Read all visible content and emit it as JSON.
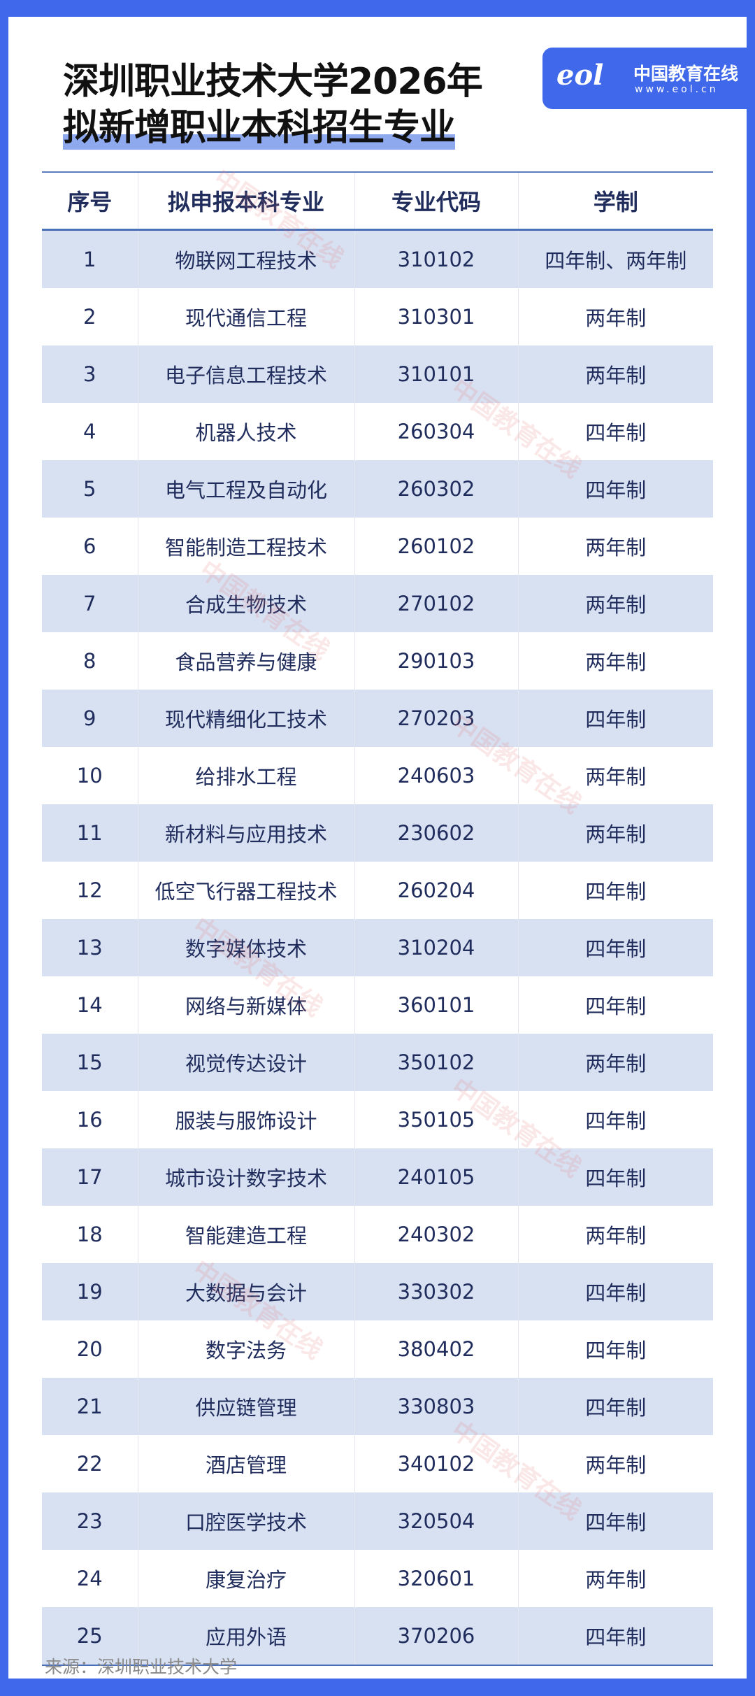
{
  "title": {
    "line1": "深圳职业技术大学2026年",
    "line2": "拟新增职业本科招生专业"
  },
  "logo": {
    "mark": "eol",
    "name": "中国教育在线",
    "url": "www.eol.cn"
  },
  "watermark": "中国教育在线",
  "table": {
    "headers": [
      "序号",
      "拟申报本科专业",
      "专业代码",
      "学制"
    ],
    "rows": [
      [
        "1",
        "物联网工程技术",
        "310102",
        "四年制、两年制"
      ],
      [
        "2",
        "现代通信工程",
        "310301",
        "两年制"
      ],
      [
        "3",
        "电子信息工程技术",
        "310101",
        "两年制"
      ],
      [
        "4",
        "机器人技术",
        "260304",
        "四年制"
      ],
      [
        "5",
        "电气工程及自动化",
        "260302",
        "四年制"
      ],
      [
        "6",
        "智能制造工程技术",
        "260102",
        "两年制"
      ],
      [
        "7",
        "合成生物技术",
        "270102",
        "两年制"
      ],
      [
        "8",
        "食品营养与健康",
        "290103",
        "两年制"
      ],
      [
        "9",
        "现代精细化工技术",
        "270203",
        "四年制"
      ],
      [
        "10",
        "给排水工程",
        "240603",
        "两年制"
      ],
      [
        "11",
        "新材料与应用技术",
        "230602",
        "两年制"
      ],
      [
        "12",
        "低空飞行器工程技术",
        "260204",
        "四年制"
      ],
      [
        "13",
        "数字媒体技术",
        "310204",
        "四年制"
      ],
      [
        "14",
        "网络与新媒体",
        "360101",
        "四年制"
      ],
      [
        "15",
        "视觉传达设计",
        "350102",
        "两年制"
      ],
      [
        "16",
        "服装与服饰设计",
        "350105",
        "四年制"
      ],
      [
        "17",
        "城市设计数字技术",
        "240105",
        "四年制"
      ],
      [
        "18",
        "智能建造工程",
        "240302",
        "两年制"
      ],
      [
        "19",
        "大数据与会计",
        "330302",
        "四年制"
      ],
      [
        "20",
        "数字法务",
        "380402",
        "四年制"
      ],
      [
        "21",
        "供应链管理",
        "330803",
        "四年制"
      ],
      [
        "22",
        "酒店管理",
        "340102",
        "两年制"
      ],
      [
        "23",
        "口腔医学技术",
        "320504",
        "四年制"
      ],
      [
        "24",
        "康复治疗",
        "320601",
        "两年制"
      ],
      [
        "25",
        "应用外语",
        "370206",
        "四年制"
      ]
    ]
  },
  "source": "来源：深圳职业技术大学",
  "colors": {
    "frame": "#3f68ea",
    "row_alt": "#d8e1f2",
    "text": "#1f2c5c",
    "highlight": "#8fa9ef"
  }
}
